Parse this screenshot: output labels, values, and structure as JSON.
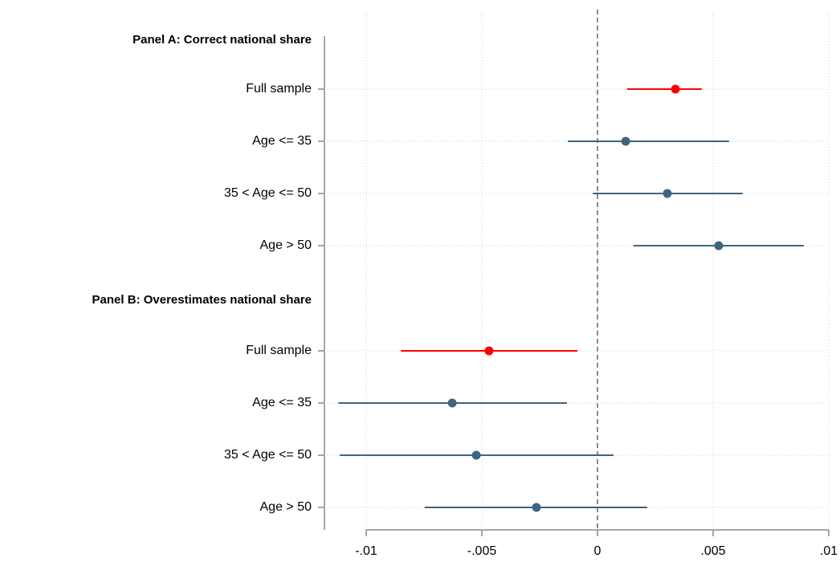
{
  "chart_data": {
    "type": "coefplot",
    "categories": [
      "Panel A: Correct national share",
      "Full sample",
      "Age <= 35",
      "35 < Age <= 50",
      "Age > 50",
      "Panel B: Overestimates national share",
      "Full sample",
      "Age <= 35",
      "35 < Age <= 50",
      "Age > 50"
    ],
    "values": [
      null,
      0.00337,
      0.00122,
      0.00302,
      0.00524,
      null,
      -0.00469,
      -0.00628,
      -0.00524,
      -0.00264
    ],
    "lower": [
      null,
      0.00128,
      -0.00128,
      -0.0002,
      0.00156,
      null,
      -0.0085,
      -0.0112,
      -0.01115,
      -0.00747
    ],
    "upper": [
      null,
      0.00451,
      0.00569,
      0.00628,
      0.00892,
      null,
      -0.00087,
      -0.00132,
      0.00069,
      0.00215
    ],
    "colors": [
      null,
      "#ff0000",
      "#3e6480",
      "#3e6480",
      "#3e6480",
      null,
      "#ff0000",
      "#3e6480",
      "#3e6480",
      "#3e6480"
    ],
    "xlim": [
      -0.01,
      0.01
    ],
    "xticks": [
      {
        "value": -0.01,
        "label": "-.01"
      },
      {
        "value": -0.005,
        "label": "-.005"
      },
      0,
      {
        "value": 0.005,
        "label": ".005"
      },
      {
        "value": 0.01,
        "label": ".01"
      }
    ],
    "refline": 0,
    "grid": true
  }
}
